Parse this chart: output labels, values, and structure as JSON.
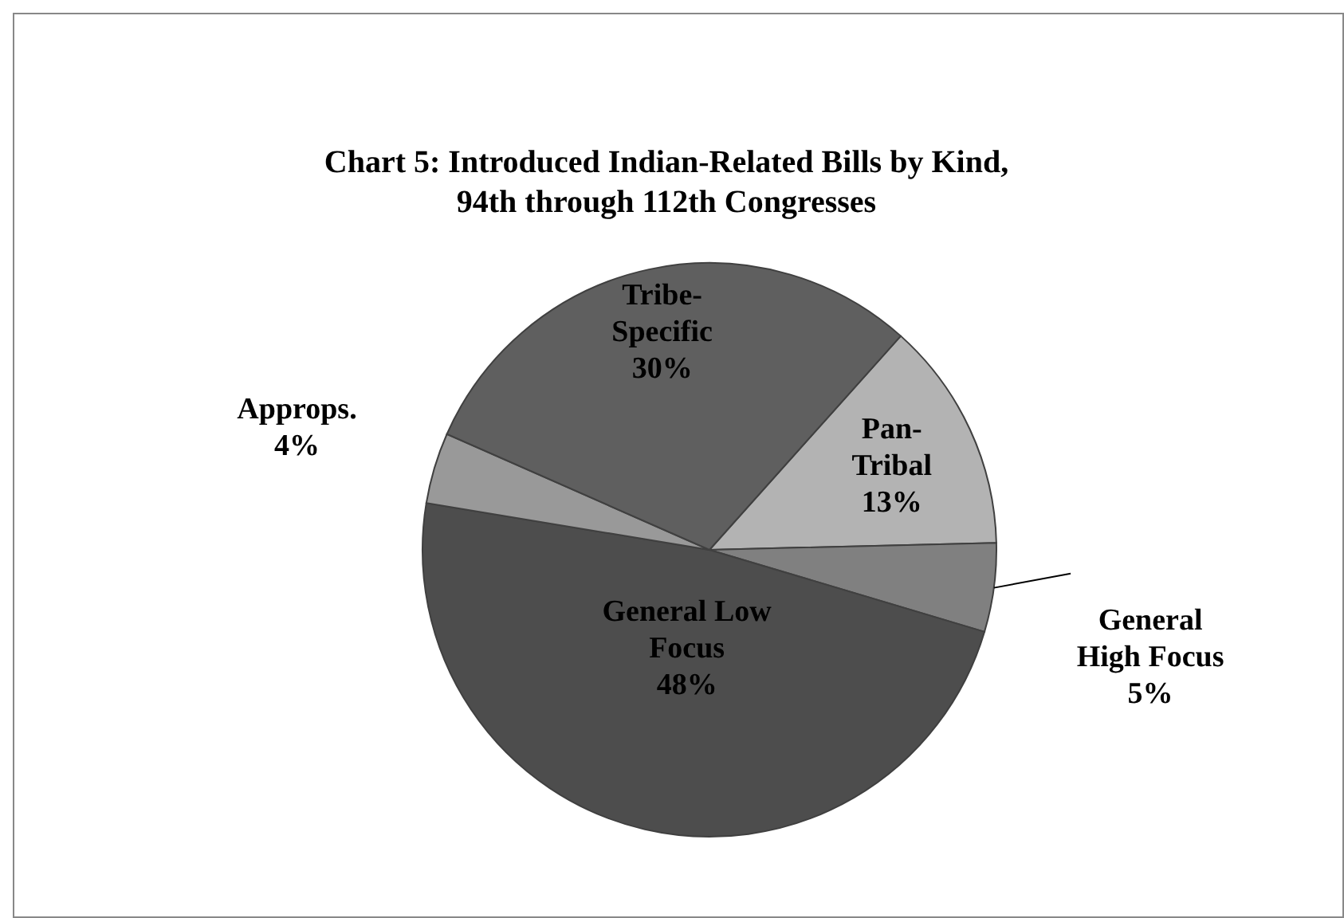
{
  "chart_data": {
    "type": "pie",
    "title": "Chart 5: Introduced Indian-Related Bills by Kind, 94th through 112th Congresses",
    "categories": [
      "Pan-Tribal",
      "General High Focus",
      "General Low Focus",
      "Approps.",
      "Tribe-Specific"
    ],
    "values": [
      13,
      5,
      48,
      4,
      30
    ],
    "colors": [
      "#b3b3b3",
      "#808080",
      "#4d4d4d",
      "#999999",
      "#5f5f5f"
    ],
    "value_labels": [
      "13%",
      "5%",
      "48%",
      "4%",
      "30%"
    ]
  }
}
